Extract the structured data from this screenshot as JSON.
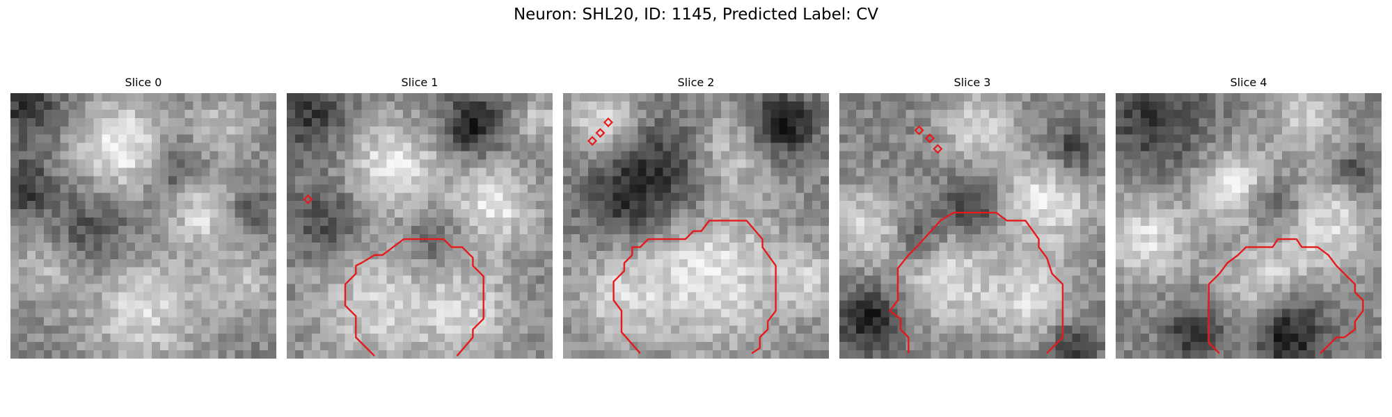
{
  "figure": {
    "title": "Neuron: SHL20, ID: 1145, Predicted Label: CV"
  },
  "overlay_color": "#e41a1c",
  "panels": [
    {
      "title": "Slice 0",
      "seed": 11,
      "blobs": [
        [
          0.42,
          0.2,
          0.17,
          0.95
        ],
        [
          0.8,
          0.12,
          0.12,
          0.55
        ],
        [
          0.74,
          0.45,
          0.13,
          0.75
        ],
        [
          0.15,
          0.66,
          0.14,
          0.55
        ],
        [
          0.5,
          0.8,
          0.22,
          0.75
        ],
        [
          0.88,
          0.72,
          0.12,
          0.5
        ]
      ],
      "darks": [
        [
          0.05,
          0.05,
          0.14,
          0.55
        ],
        [
          0.05,
          0.35,
          0.1,
          0.55
        ],
        [
          0.3,
          0.55,
          0.18,
          0.45
        ],
        [
          0.62,
          0.28,
          0.1,
          0.45
        ],
        [
          0.88,
          0.45,
          0.09,
          0.4
        ]
      ],
      "contour": [],
      "markers": []
    },
    {
      "title": "Slice 1",
      "seed": 23,
      "blobs": [
        [
          0.4,
          0.28,
          0.17,
          0.9
        ],
        [
          0.78,
          0.42,
          0.16,
          0.85
        ],
        [
          0.35,
          0.8,
          0.25,
          0.65
        ],
        [
          0.7,
          0.82,
          0.18,
          0.6
        ],
        [
          0.95,
          0.1,
          0.08,
          0.6
        ]
      ],
      "darks": [
        [
          0.08,
          0.08,
          0.14,
          0.55
        ],
        [
          0.7,
          0.12,
          0.11,
          0.75
        ],
        [
          0.15,
          0.48,
          0.14,
          0.45
        ],
        [
          0.55,
          0.55,
          0.12,
          0.35
        ]
      ],
      "contour": [
        [
          0.33,
          0.99
        ],
        [
          0.26,
          0.92
        ],
        [
          0.26,
          0.84
        ],
        [
          0.22,
          0.8
        ],
        [
          0.22,
          0.72
        ],
        [
          0.26,
          0.68
        ],
        [
          0.26,
          0.65
        ],
        [
          0.28,
          0.64
        ],
        [
          0.33,
          0.61
        ],
        [
          0.36,
          0.61
        ],
        [
          0.4,
          0.58
        ],
        [
          0.44,
          0.55
        ],
        [
          0.59,
          0.55
        ],
        [
          0.62,
          0.58
        ],
        [
          0.66,
          0.58
        ],
        [
          0.7,
          0.62
        ],
        [
          0.7,
          0.65
        ],
        [
          0.74,
          0.69
        ],
        [
          0.74,
          0.85
        ],
        [
          0.7,
          0.89
        ],
        [
          0.7,
          0.92
        ],
        [
          0.64,
          0.99
        ]
      ],
      "markers": [
        [
          0.08,
          0.4
        ]
      ]
    },
    {
      "title": "Slice 2",
      "seed": 37,
      "blobs": [
        [
          0.15,
          0.1,
          0.14,
          0.7
        ],
        [
          0.62,
          0.22,
          0.16,
          0.6
        ],
        [
          0.55,
          0.68,
          0.28,
          0.85
        ],
        [
          0.2,
          0.78,
          0.16,
          0.55
        ],
        [
          0.92,
          0.7,
          0.12,
          0.55
        ]
      ],
      "darks": [
        [
          0.4,
          0.3,
          0.2,
          0.6
        ],
        [
          0.82,
          0.12,
          0.12,
          0.85
        ],
        [
          0.22,
          0.4,
          0.14,
          0.5
        ]
      ],
      "contour": [
        [
          0.29,
          0.98
        ],
        [
          0.22,
          0.9
        ],
        [
          0.22,
          0.82
        ],
        [
          0.19,
          0.78
        ],
        [
          0.19,
          0.71
        ],
        [
          0.23,
          0.67
        ],
        [
          0.23,
          0.64
        ],
        [
          0.26,
          0.61
        ],
        [
          0.26,
          0.58
        ],
        [
          0.29,
          0.58
        ],
        [
          0.32,
          0.55
        ],
        [
          0.46,
          0.55
        ],
        [
          0.49,
          0.52
        ],
        [
          0.52,
          0.52
        ],
        [
          0.55,
          0.48
        ],
        [
          0.69,
          0.48
        ],
        [
          0.75,
          0.55
        ],
        [
          0.75,
          0.58
        ],
        [
          0.8,
          0.65
        ],
        [
          0.8,
          0.82
        ],
        [
          0.77,
          0.86
        ],
        [
          0.77,
          0.89
        ],
        [
          0.74,
          0.92
        ],
        [
          0.74,
          0.96
        ],
        [
          0.71,
          0.98
        ]
      ],
      "markers": [
        [
          0.11,
          0.18
        ],
        [
          0.14,
          0.15
        ],
        [
          0.17,
          0.11
        ]
      ]
    },
    {
      "title": "Slice 3",
      "seed": 53,
      "blobs": [
        [
          0.52,
          0.12,
          0.14,
          0.7
        ],
        [
          0.1,
          0.5,
          0.14,
          0.7
        ],
        [
          0.78,
          0.4,
          0.18,
          0.85
        ],
        [
          0.4,
          0.7,
          0.18,
          0.75
        ],
        [
          0.72,
          0.78,
          0.16,
          0.7
        ]
      ],
      "darks": [
        [
          0.12,
          0.85,
          0.12,
          0.75
        ],
        [
          0.88,
          0.22,
          0.1,
          0.6
        ],
        [
          0.5,
          0.42,
          0.1,
          0.6
        ],
        [
          0.3,
          0.55,
          0.1,
          0.45
        ],
        [
          0.88,
          0.95,
          0.1,
          0.55
        ]
      ],
      "contour": [
        [
          0.26,
          0.98
        ],
        [
          0.26,
          0.92
        ],
        [
          0.23,
          0.89
        ],
        [
          0.23,
          0.85
        ],
        [
          0.19,
          0.82
        ],
        [
          0.22,
          0.78
        ],
        [
          0.22,
          0.66
        ],
        [
          0.26,
          0.61
        ],
        [
          0.29,
          0.58
        ],
        [
          0.38,
          0.48
        ],
        [
          0.43,
          0.45
        ],
        [
          0.46,
          0.45
        ],
        [
          0.5,
          0.45
        ],
        [
          0.59,
          0.45
        ],
        [
          0.63,
          0.48
        ],
        [
          0.7,
          0.48
        ],
        [
          0.75,
          0.55
        ],
        [
          0.75,
          0.58
        ],
        [
          0.78,
          0.62
        ],
        [
          0.8,
          0.68
        ],
        [
          0.84,
          0.72
        ],
        [
          0.84,
          0.92
        ],
        [
          0.78,
          0.98
        ]
      ],
      "markers": [
        [
          0.3,
          0.14
        ],
        [
          0.34,
          0.17
        ],
        [
          0.37,
          0.21
        ]
      ]
    },
    {
      "title": "Slice 4",
      "seed": 71,
      "blobs": [
        [
          0.12,
          0.55,
          0.16,
          0.8
        ],
        [
          0.45,
          0.35,
          0.14,
          0.85
        ],
        [
          0.8,
          0.5,
          0.18,
          0.75
        ],
        [
          0.55,
          0.72,
          0.16,
          0.7
        ],
        [
          0.72,
          0.1,
          0.14,
          0.6
        ]
      ],
      "darks": [
        [
          0.15,
          0.1,
          0.18,
          0.55
        ],
        [
          0.65,
          0.9,
          0.14,
          0.8
        ],
        [
          0.3,
          0.9,
          0.1,
          0.65
        ],
        [
          0.6,
          0.42,
          0.1,
          0.5
        ],
        [
          0.9,
          0.3,
          0.08,
          0.45
        ]
      ],
      "contour": [
        [
          0.39,
          0.98
        ],
        [
          0.35,
          0.94
        ],
        [
          0.35,
          0.72
        ],
        [
          0.39,
          0.68
        ],
        [
          0.42,
          0.64
        ],
        [
          0.46,
          0.61
        ],
        [
          0.49,
          0.58
        ],
        [
          0.52,
          0.58
        ],
        [
          0.59,
          0.58
        ],
        [
          0.61,
          0.55
        ],
        [
          0.68,
          0.55
        ],
        [
          0.7,
          0.58
        ],
        [
          0.76,
          0.58
        ],
        [
          0.8,
          0.61
        ],
        [
          0.83,
          0.65
        ],
        [
          0.86,
          0.68
        ],
        [
          0.9,
          0.72
        ],
        [
          0.9,
          0.75
        ],
        [
          0.93,
          0.78
        ],
        [
          0.93,
          0.82
        ],
        [
          0.9,
          0.86
        ],
        [
          0.9,
          0.89
        ],
        [
          0.86,
          0.92
        ],
        [
          0.83,
          0.92
        ],
        [
          0.8,
          0.95
        ],
        [
          0.77,
          0.98
        ]
      ],
      "markers": []
    }
  ]
}
